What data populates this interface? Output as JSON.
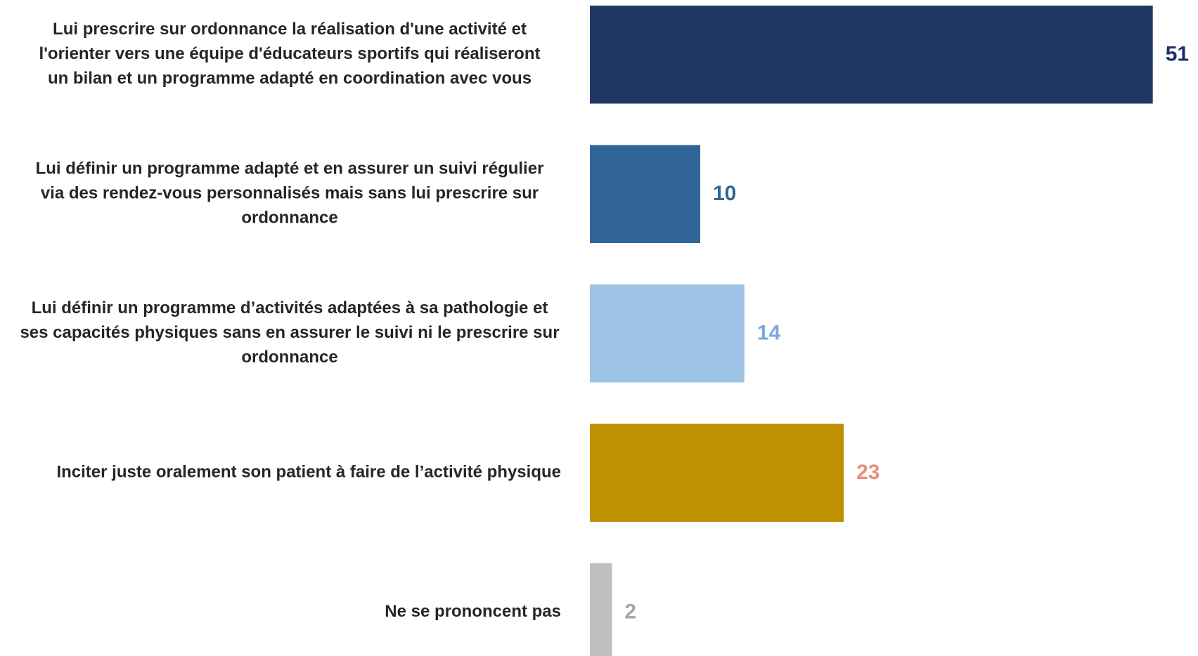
{
  "chart_data": {
    "type": "bar",
    "orientation": "horizontal",
    "categories": [
      [
        "Lui prescrire sur ordonnance la réalisation d'une activité et",
        "l'orienter vers une équipe d'éducateurs sportifs qui réaliseront",
        "un bilan et un programme adapté en coordination avec vous"
      ],
      [
        "Lui définir un programme adapté et en assurer un suivi régulier",
        "via des rendez-vous personnalisés mais sans lui prescrire sur",
        "ordonnance"
      ],
      [
        "Lui définir un programme d’activités adaptées à sa pathologie et",
        "ses capacités physiques sans en assurer le suivi ni le prescrire sur",
        "ordonnance"
      ],
      [
        "Inciter juste oralement son patient à faire de l’activité physique"
      ],
      [
        "Ne se prononcent pas"
      ]
    ],
    "values": [
      51,
      10,
      14,
      23,
      2
    ],
    "colors": [
      "#203864",
      "#31659a",
      "#9dc3e6",
      "#bf9000",
      "#bfbfbf"
    ],
    "label_colors": [
      "#1f2d6b",
      "#31659a",
      "#7ba7d9",
      "#e8907a",
      "#a6a6a6"
    ]
  }
}
